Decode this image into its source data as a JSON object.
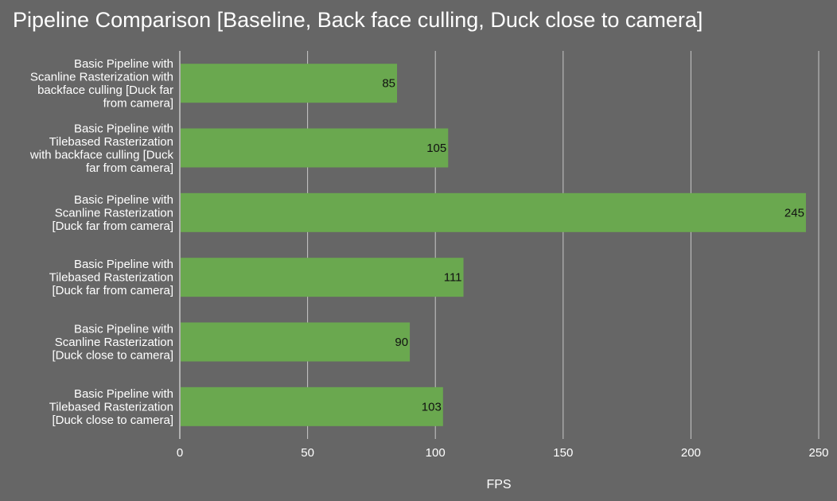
{
  "chart_data": {
    "type": "bar",
    "orientation": "horizontal",
    "title": "Pipeline Comparison [Baseline, Back face culling, Duck close to camera]",
    "xlabel": "FPS",
    "ylabel": "",
    "xlim": [
      0,
      250
    ],
    "x_ticks": [
      0,
      50,
      100,
      150,
      200,
      250
    ],
    "grid": true,
    "legend": "none",
    "bar_color": "#6aa84f",
    "background_color": "#666666",
    "categories": [
      [
        "Basic Pipeline with",
        "Scanline Rasterization with",
        "backface culling [Duck far",
        "from camera]"
      ],
      [
        "Basic Pipeline with",
        "Tilebased Rasterization",
        "with backface culling [Duck",
        "far from camera]"
      ],
      [
        "Basic Pipeline with",
        "Scanline Rasterization",
        "[Duck far from camera]"
      ],
      [
        "Basic Pipeline with",
        "Tilebased Rasterization",
        "[Duck far from camera]"
      ],
      [
        "Basic Pipeline with",
        "Scanline Rasterization",
        "[Duck close to camera]"
      ],
      [
        "Basic Pipeline with",
        "Tilebased Rasterization",
        "[Duck close to camera]"
      ]
    ],
    "values": [
      85,
      105,
      245,
      111,
      90,
      103
    ]
  }
}
